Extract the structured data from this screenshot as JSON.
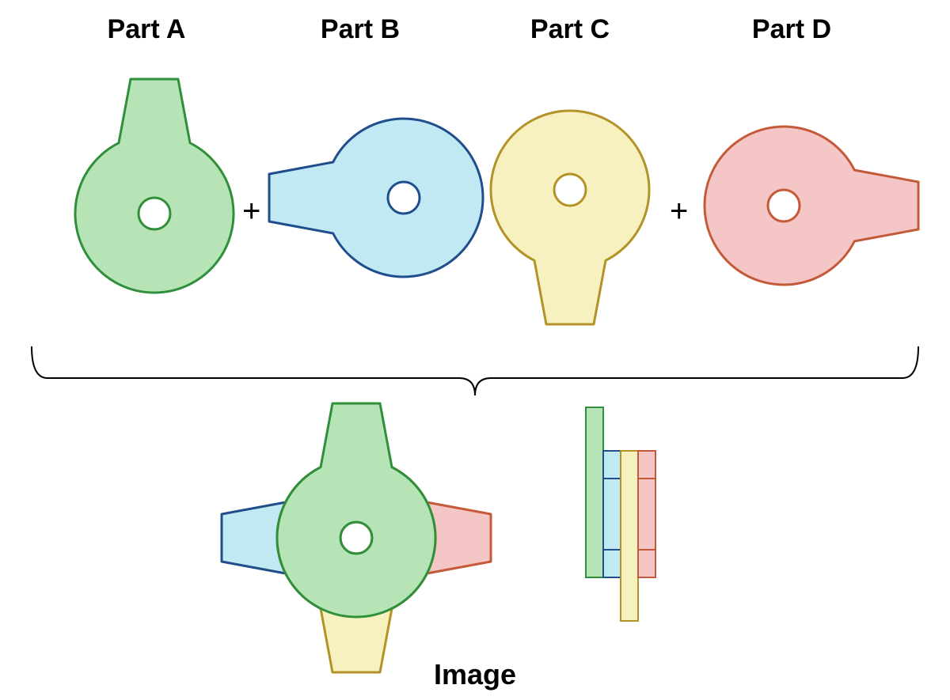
{
  "type": "infographic",
  "background_color": "#ffffff",
  "labels": {
    "partA": "Part A",
    "partB": "Part B",
    "partC": "Part C",
    "partD": "Part D",
    "image": "Image",
    "plus": "+"
  },
  "label_fontsize": 34,
  "label_font_weight": 600,
  "label_color": "#000000",
  "plus_fontsize": 40,
  "image_label_fontsize": 36,
  "parts": {
    "A": {
      "fill": "#b7e4b7",
      "stroke": "#2f8f3a",
      "tab_direction": "up"
    },
    "B": {
      "fill": "#c1e9f4",
      "stroke": "#1f4e8c",
      "tab_direction": "left"
    },
    "C": {
      "fill": "#f6f1bf",
      "stroke": "#b39327",
      "tab_direction": "down"
    },
    "D": {
      "fill": "#f4c6c6",
      "stroke": "#c45a3a",
      "tab_direction": "right"
    }
  },
  "shape_geometry": {
    "circle_radius": 100,
    "hole_radius": 20,
    "tab_base_half_width": 45,
    "tab_top_half_width": 30,
    "tab_length": 70,
    "stroke_width": 3
  },
  "brace": {
    "stroke": "#000000",
    "stroke_width": 2
  },
  "assembled_top_view": {
    "stack_order_back_to_front": [
      "B",
      "D",
      "C",
      "A"
    ]
  },
  "assembled_side_view": {
    "layer_order_left_to_right": [
      "A",
      "B",
      "C",
      "D"
    ],
    "layer_width": 22,
    "layer_gap": 0,
    "body_height": 160,
    "tab_extra": 55
  }
}
